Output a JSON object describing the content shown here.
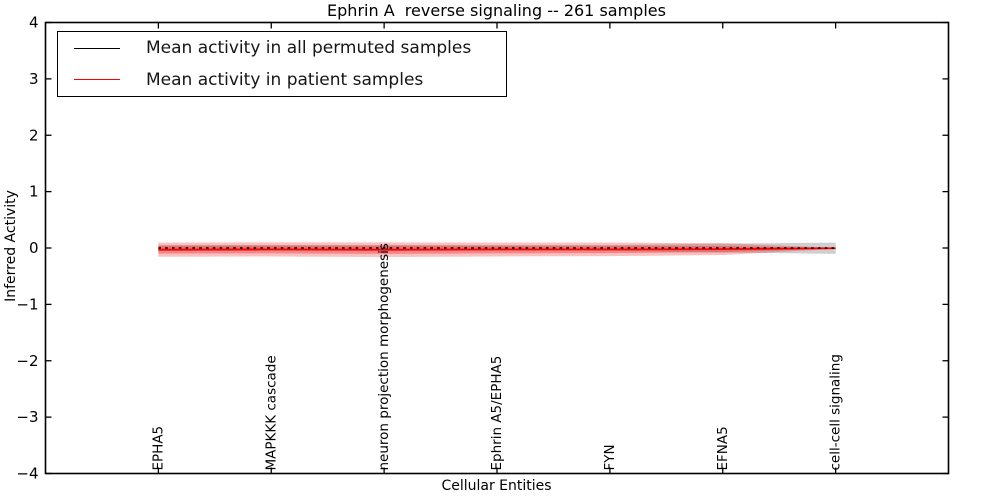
{
  "figure": {
    "title": "Ephrin A  reverse signaling -- 261 samples",
    "xlabel": "Cellular Entities",
    "ylabel": "Inferred Activity",
    "background_color": "#ffffff",
    "axis_color": "#000000"
  },
  "chart_data": {
    "type": "line",
    "title": "Ephrin A  reverse signaling -- 261 samples",
    "xlabel": "Cellular Entities",
    "ylabel": "Inferred Activity",
    "xlim": [
      -1,
      7
    ],
    "ylim": [
      -4,
      4
    ],
    "yticks": [
      4,
      3,
      2,
      1,
      0,
      -1,
      -2,
      -3,
      -4
    ],
    "grid": false,
    "legend_position": "upper left",
    "categories": [
      "EPHA5",
      "MAPKKK cascade",
      "neuron projection morphogenesis",
      "Ephrin A5/EPHA5",
      "FYN",
      "EFNA5",
      "cell-cell signaling"
    ],
    "series": [
      {
        "name": "Mean activity in all permuted samples",
        "color": "#000000",
        "style": "dashed",
        "width": 1.4,
        "values": [
          0.0,
          0.0,
          0.0,
          0.0,
          0.0,
          0.0,
          0.0
        ]
      },
      {
        "name": "Mean activity in patient samples",
        "color": "#ff0000",
        "style": "solid",
        "width": 1.8,
        "values": [
          -0.03,
          -0.025,
          -0.03,
          -0.025,
          -0.025,
          -0.02,
          -0.005
        ]
      }
    ],
    "bands": [
      {
        "name": "permuted-samples-std-band",
        "color": "rgba(128,128,128,0.38)",
        "upper": [
          0.05,
          0.05,
          0.05,
          0.05,
          0.05,
          0.08,
          0.095
        ],
        "lower": [
          -0.05,
          -0.05,
          -0.05,
          -0.05,
          -0.05,
          -0.08,
          -0.105
        ]
      },
      {
        "name": "patient-samples-std-outer-band",
        "color": "rgba(235,50,50,0.30)",
        "upper": [
          0.095,
          0.1,
          0.1,
          0.095,
          0.095,
          0.085,
          0.005
        ],
        "lower": [
          -0.155,
          -0.15,
          -0.16,
          -0.15,
          -0.145,
          -0.125,
          -0.015
        ]
      },
      {
        "name": "patient-samples-std-inner-band",
        "color": "rgba(235,50,50,0.40)",
        "upper": [
          0.04,
          0.045,
          0.045,
          0.04,
          0.04,
          0.035,
          0.0
        ],
        "lower": [
          -0.1,
          -0.095,
          -0.105,
          -0.095,
          -0.09,
          -0.075,
          -0.01
        ]
      }
    ]
  }
}
